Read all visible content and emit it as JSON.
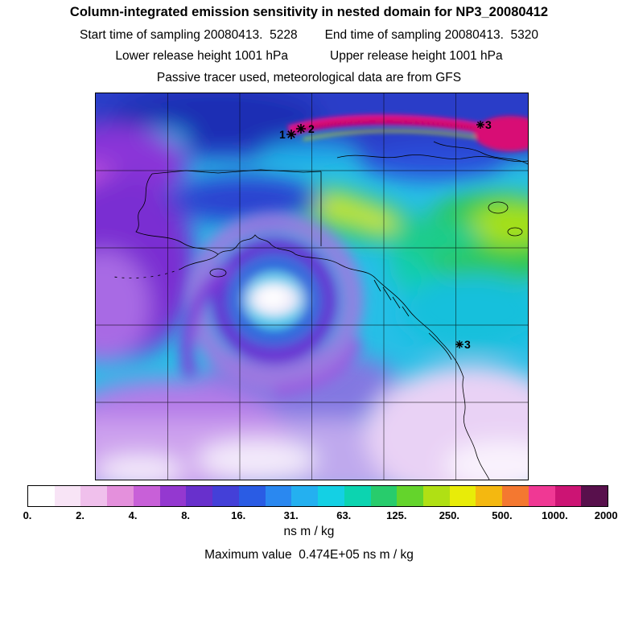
{
  "header": {
    "title": "Column-integrated emission sensitivity in nested domain for NP3_20080412",
    "start_time_label": "Start time of sampling 20080413.  5228",
    "end_time_label": "End time of sampling 20080413.  5320",
    "lower_release_label": "Lower release height 1001 hPa",
    "upper_release_label": "Upper release height 1001 hPa",
    "tracer_met_label": "Passive tracer used, meteorological data are from GFS"
  },
  "map": {
    "markers": [
      {
        "label": "1"
      },
      {
        "label": "2"
      },
      {
        "label": "3"
      },
      {
        "label": "3"
      }
    ]
  },
  "colorbar": {
    "unit": "ns m / kg",
    "ticks": [
      "0.",
      "2.",
      "4.",
      "8.",
      "16.",
      "31.",
      "63.",
      "125.",
      "250.",
      "500.",
      "1000.",
      "2000."
    ],
    "colors": [
      "#ffffff",
      "#f8e4f6",
      "#f0c0ec",
      "#e490dc",
      "#c860d8",
      "#9438d0",
      "#6830cc",
      "#4440d8",
      "#2a5ce4",
      "#2a88f0",
      "#24b0f0",
      "#14d0e4",
      "#0cd4b0",
      "#28cc6c",
      "#64d42c",
      "#b0e014",
      "#e8ec08",
      "#f4b810",
      "#f47830",
      "#f03894",
      "#cc1474",
      "#58104c"
    ]
  },
  "footer": {
    "max_value_label": "Maximum value  0.474E+05 ns m / kg"
  },
  "chart_data": {
    "type": "heatmap",
    "title": "Column-integrated emission sensitivity in nested domain for NP3_20080412",
    "quantity": "Column-integrated emission sensitivity",
    "unit": "ns m / kg",
    "levels": [
      0,
      2,
      4,
      8,
      16,
      31,
      63,
      125,
      250,
      500,
      1000,
      2000
    ],
    "colorbar_colors": [
      "#ffffff",
      "#f8e4f6",
      "#f0c0ec",
      "#e490dc",
      "#c860d8",
      "#9438d0",
      "#6830cc",
      "#4440d8",
      "#2a5ce4",
      "#2a88f0",
      "#24b0f0",
      "#14d0e4",
      "#0cd4b0",
      "#28cc6c",
      "#64d42c",
      "#b0e014",
      "#e8ec08",
      "#f4b810",
      "#f47830",
      "#f03894",
      "#cc1474",
      "#58104c"
    ],
    "max_value": "0.474E+05",
    "sampling": {
      "start": "20080413.  5228",
      "end": "20080413.  5320"
    },
    "release_heights_hPa": {
      "lower": 1001,
      "upper": 1001
    },
    "tracer": "Passive",
    "meteorology": "GFS",
    "receptor_markers": [
      "1",
      "2",
      "3",
      "3"
    ],
    "legend_position": "bottom",
    "grid": true,
    "map_grid": {
      "columns": 6,
      "rows": 5
    }
  }
}
